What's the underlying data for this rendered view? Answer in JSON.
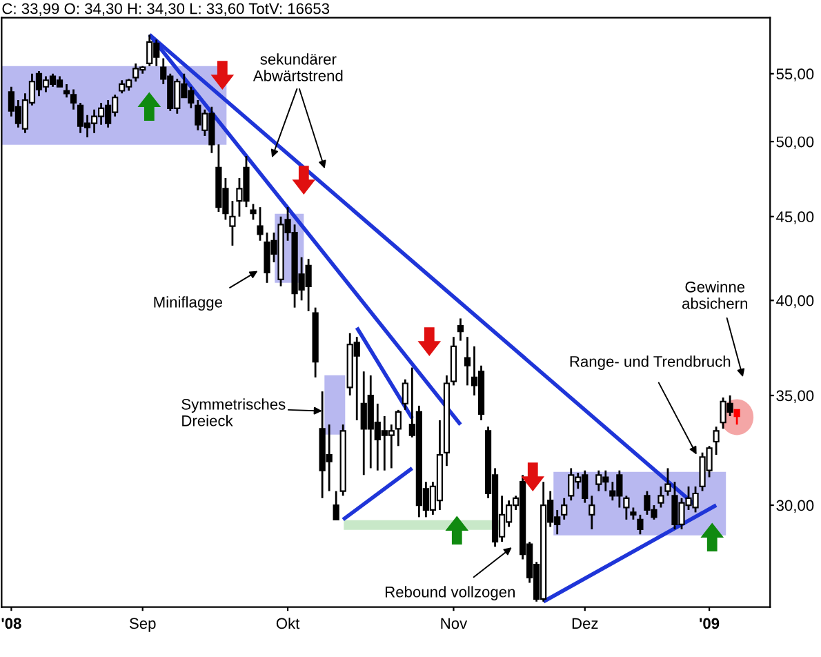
{
  "chart_data": {
    "type": "candlestick",
    "title": "C: 33,99 O: 34,30 H: 34,30 L: 33,60 TotV: 16653",
    "categories": [
      "'08",
      null,
      null,
      null,
      null,
      null,
      null,
      null,
      null,
      null,
      null,
      null,
      null,
      null,
      null,
      null,
      null,
      null,
      null,
      "Sep",
      null,
      null,
      null,
      null,
      null,
      null,
      null,
      null,
      null,
      null,
      null,
      null,
      null,
      null,
      null,
      null,
      null,
      null,
      null,
      null,
      "Okt",
      null,
      null,
      null,
      null,
      null,
      null,
      null,
      null,
      null,
      null,
      null,
      null,
      null,
      null,
      null,
      null,
      null,
      null,
      null,
      null,
      null,
      null,
      null,
      "Nov",
      null,
      null,
      null,
      null,
      null,
      null,
      null,
      null,
      null,
      null,
      null,
      null,
      null,
      null,
      null,
      null,
      null,
      null,
      "Dez",
      null,
      null,
      null,
      null,
      null,
      null,
      null,
      null,
      null,
      null,
      null,
      null,
      null,
      null,
      null,
      null,
      null,
      "'09",
      null,
      null,
      null,
      null
    ],
    "ohlc": [
      [
        53.6,
        54,
        51.8,
        52.2
      ],
      [
        52.5,
        53,
        51,
        51.3
      ],
      [
        50.9,
        53.5,
        50.6,
        53.0
      ],
      [
        52.8,
        55,
        52.6,
        54.4
      ],
      [
        55,
        55.2,
        53.3,
        53.8
      ],
      [
        54,
        54.8,
        53.6,
        54.5
      ],
      [
        54.8,
        55,
        54,
        54.2
      ],
      [
        54.5,
        54.8,
        54,
        54.0
      ],
      [
        53.7,
        54.2,
        53.2,
        53.5
      ],
      [
        53.4,
        53.8,
        52.3,
        52.8
      ],
      [
        52.6,
        52.8,
        50.6,
        51.1
      ],
      [
        51.3,
        51.9,
        50.3,
        51.0
      ],
      [
        51.3,
        52.3,
        50.6,
        51.8
      ],
      [
        51.8,
        52.8,
        51.2,
        52.4
      ],
      [
        52.6,
        53,
        51,
        51.3
      ],
      [
        52.1,
        53.4,
        51.8,
        53.2
      ],
      [
        53.7,
        54.5,
        53.5,
        54.2
      ],
      [
        54.0,
        54.6,
        53.7,
        54.5
      ],
      [
        54.7,
        55.8,
        54.4,
        55.4
      ],
      [
        55.3,
        55.6,
        55.0,
        55.5
      ],
      [
        55.8,
        58.1,
        55.6,
        57.5
      ],
      [
        57.4,
        57.7,
        55.6,
        56.3
      ],
      [
        55.5,
        56.2,
        54.2,
        54.6
      ],
      [
        54.8,
        55,
        52.2,
        52.4
      ],
      [
        52.4,
        54.6,
        52,
        54.4
      ],
      [
        54.2,
        55,
        53.2,
        53.2
      ],
      [
        53.7,
        54,
        52.4,
        52.8
      ],
      [
        52.6,
        53,
        50.8,
        51.2
      ],
      [
        50.8,
        52.3,
        50.4,
        52.0
      ],
      [
        52.0,
        52.5,
        49.2,
        49.8
      ],
      [
        48.2,
        49.8,
        45.3,
        45.6
      ],
      [
        46.8,
        47.5,
        44.8,
        45.2
      ],
      [
        44.4,
        46,
        43.2,
        45.0
      ],
      [
        46,
        47.5,
        45,
        46.8
      ],
      [
        48.2,
        49,
        45.6,
        46
      ],
      [
        45.4,
        45.8,
        44.8,
        45.2
      ],
      [
        44.4,
        45.6,
        43.5,
        43.9
      ],
      [
        43.4,
        44,
        41,
        41.6
      ],
      [
        43.5,
        44,
        42.2,
        42.7
      ],
      [
        41.2,
        45,
        40.8,
        44.5
      ],
      [
        44.8,
        45.6,
        43.5,
        44.0
      ],
      [
        44,
        44.5,
        39.6,
        40.4
      ],
      [
        41.5,
        42.5,
        40,
        40.6
      ],
      [
        42,
        42.4,
        39.4,
        40.8
      ],
      [
        39.3,
        39.6,
        35.9,
        36.7
      ],
      [
        33.4,
        35.2,
        30.3,
        31.5
      ],
      [
        32.2,
        33.6,
        30.6,
        31.9
      ],
      [
        30,
        30.6,
        29.4,
        29.4
      ],
      [
        30.6,
        33.6,
        30.4,
        33.3
      ],
      [
        35.4,
        38.2,
        35,
        37.6
      ],
      [
        37.7,
        38,
        33.8,
        37.0
      ],
      [
        34.6,
        36.2,
        31.3,
        33.4
      ],
      [
        35,
        36,
        31.6,
        33.4
      ],
      [
        33.7,
        34.6,
        31.5,
        32.9
      ],
      [
        33.3,
        34,
        31.5,
        33.1
      ],
      [
        33.1,
        33.6,
        31.6,
        33.3
      ],
      [
        33.4,
        34.3,
        32.6,
        34.2
      ],
      [
        34.6,
        35.8,
        34.3,
        35.6
      ],
      [
        33.6,
        36.4,
        33,
        33.1
      ],
      [
        34.2,
        34.5,
        29.5,
        30.0
      ],
      [
        30.7,
        31,
        29.5,
        29.8
      ],
      [
        29.8,
        31,
        29.6,
        30.8
      ],
      [
        30.2,
        33.8,
        29.8,
        32.2
      ],
      [
        32.3,
        36,
        31.7,
        35.6
      ],
      [
        35.7,
        38,
        35.5,
        37.5
      ],
      [
        38.6,
        39,
        37.8,
        38.3
      ],
      [
        36.9,
        38,
        35.5,
        36.5
      ],
      [
        35.9,
        37.5,
        35,
        35.5
      ],
      [
        36.2,
        36.5,
        33.8,
        34.1
      ],
      [
        33.3,
        33.5,
        30.3,
        30.5
      ],
      [
        31.3,
        31.6,
        28.3,
        28.5
      ],
      [
        28.7,
        30.4,
        28.5,
        29.6
      ],
      [
        29.3,
        30.2,
        29.1,
        30.0
      ],
      [
        30.0,
        30.4,
        29.8,
        30.3
      ],
      [
        31,
        31.3,
        27.8,
        28.0
      ],
      [
        28.4,
        28.5,
        26.9,
        27.1
      ],
      [
        27.6,
        27.7,
        26.2,
        26.3
      ],
      [
        26.3,
        31,
        26.2,
        30.0
      ],
      [
        30.2,
        30.6,
        29.1,
        29.3
      ],
      [
        29.5,
        29.8,
        28.8,
        29.2
      ],
      [
        29.6,
        30.3,
        29.4,
        30.0
      ],
      [
        30.4,
        31.6,
        30.2,
        31.3
      ],
      [
        31.0,
        31.4,
        30.7,
        31.2
      ],
      [
        31.3,
        31.5,
        30.1,
        30.3
      ],
      [
        29.6,
        30.4,
        29.0,
        30.0
      ],
      [
        30.9,
        31.5,
        30.6,
        31.3
      ],
      [
        31.2,
        31.5,
        30.6,
        31.0
      ],
      [
        30.6,
        31.0,
        30.2,
        30.4
      ],
      [
        31.3,
        31.5,
        29.9,
        30.4
      ],
      [
        29.9,
        30.4,
        29.4,
        30.3
      ],
      [
        29.7,
        29.9,
        29.4,
        29.6
      ],
      [
        29.4,
        29.6,
        28.8,
        29.0
      ],
      [
        30.4,
        30.6,
        29.6,
        29.8
      ],
      [
        29.8,
        30.0,
        29.4,
        29.5
      ],
      [
        30.1,
        30.8,
        29.9,
        30.4
      ],
      [
        30.6,
        31.6,
        30.4,
        30.9
      ],
      [
        30.4,
        31.0,
        29.0,
        29.2
      ],
      [
        29.2,
        30.3,
        29.0,
        30.1
      ],
      [
        30.0,
        30.8,
        29.8,
        30.3
      ],
      [
        29.9,
        30.8,
        29.7,
        30.5
      ],
      [
        30.8,
        32.3,
        30.6,
        32.1
      ],
      [
        31.5,
        32.6,
        31.2,
        32.5
      ],
      [
        32.8,
        33.5,
        32.2,
        33.3
      ],
      [
        33.7,
        34.9,
        33.4,
        34.7
      ],
      [
        34.6,
        35.0,
        34.0,
        34.2
      ],
      [
        34.3,
        34.3,
        33.6,
        33.99
      ]
    ],
    "colors": [
      "#000000",
      "#000000",
      "#ffffff",
      "#ffffff",
      "#000000",
      "#ffffff",
      "#000000",
      "#000000",
      "#000000",
      "#000000",
      "#000000",
      "#000000",
      "#ffffff",
      "#ffffff",
      "#000000",
      "#ffffff",
      "#ffffff",
      "#ffffff",
      "#ffffff",
      "#ffffff",
      "#ffffff",
      "#000000",
      "#000000",
      "#000000",
      "#ffffff",
      "#000000",
      "#000000",
      "#000000",
      "#ffffff",
      "#000000",
      "#000000",
      "#000000",
      "#ffffff",
      "#ffffff",
      "#000000",
      "#000000",
      "#000000",
      "#000000",
      "#000000",
      "#ffffff",
      "#000000",
      "#000000",
      "#000000",
      "#000000",
      "#000000",
      "#000000",
      "#000000",
      "#000000",
      "#ffffff",
      "#ffffff",
      "#000000",
      "#000000",
      "#000000",
      "#000000",
      "#000000",
      "#ffffff",
      "#ffffff",
      "#ffffff",
      "#000000",
      "#000000",
      "#000000",
      "#ffffff",
      "#ffffff",
      "#ffffff",
      "#ffffff",
      "#000000",
      "#000000",
      "#000000",
      "#000000",
      "#000000",
      "#000000",
      "#ffffff",
      "#ffffff",
      "#ffffff",
      "#000000",
      "#000000",
      "#000000",
      "#ffffff",
      "#000000",
      "#000000",
      "#ffffff",
      "#ffffff",
      "#ffffff",
      "#000000",
      "#ffffff",
      "#ffffff",
      "#000000",
      "#000000",
      "#000000",
      "#ffffff",
      "#000000",
      "#000000",
      "#000000",
      "#000000",
      "#ffffff",
      "#ffffff",
      "#000000",
      "#ffffff",
      "#ffffff",
      "#ffffff",
      "#ffffff",
      "#ffffff",
      "#ffffff",
      "#ffffff",
      "#000000",
      "#ff0000"
    ],
    "series": [
      {
        "type": "line",
        "color": "#1f35d8",
        "values": [
          null,
          null,
          null,
          null,
          null,
          null,
          null,
          null,
          null,
          null,
          null,
          null,
          null,
          null,
          null,
          null,
          null,
          null,
          null,
          null,
          58.1,
          null,
          null,
          null,
          null,
          null,
          null,
          null,
          null,
          null,
          null,
          null,
          null,
          null,
          null,
          null,
          null,
          null,
          null,
          null,
          null,
          null,
          null,
          null,
          null,
          null,
          null,
          null,
          null,
          null,
          null,
          null,
          null,
          null,
          null,
          null,
          null,
          null,
          null,
          null,
          null,
          null,
          null,
          null,
          null,
          null,
          null,
          null,
          null,
          null,
          null,
          null,
          null,
          null,
          null,
          null,
          null,
          null,
          null,
          null,
          null,
          null,
          null,
          null,
          null,
          null,
          null,
          null,
          null,
          null,
          null,
          null,
          null,
          null,
          null,
          null,
          null,
          null,
          null,
          30.0,
          null,
          null,
          null,
          null,
          null,
          null
        ]
      },
      {
        "type": "line",
        "color": "#1f35d8",
        "values": [
          null,
          null,
          null,
          null,
          null,
          null,
          null,
          null,
          null,
          null,
          null,
          null,
          null,
          null,
          null,
          null,
          null,
          null,
          null,
          null,
          58.1,
          null,
          null,
          null,
          null,
          null,
          null,
          null,
          null,
          null,
          null,
          null,
          null,
          null,
          null,
          null,
          null,
          null,
          null,
          null,
          null,
          null,
          null,
          null,
          null,
          null,
          null,
          null,
          null,
          null,
          null,
          null,
          null,
          null,
          null,
          null,
          null,
          null,
          null,
          null,
          null,
          null,
          null,
          null,
          null,
          33.6,
          null,
          null,
          null,
          null,
          null,
          null,
          null,
          null,
          null,
          null,
          null,
          null,
          null,
          null,
          null,
          null,
          null,
          null,
          null,
          null,
          null,
          null,
          null,
          null,
          null,
          null,
          null,
          null,
          null,
          null,
          null,
          null,
          null,
          null,
          null,
          null,
          null,
          null,
          null,
          null
        ]
      },
      {
        "type": "line",
        "color": "#1f35d8",
        "values": [
          null,
          null,
          null,
          null,
          null,
          null,
          null,
          null,
          null,
          null,
          null,
          null,
          null,
          null,
          null,
          null,
          null,
          null,
          null,
          null,
          null,
          null,
          null,
          null,
          null,
          null,
          null,
          null,
          null,
          null,
          null,
          null,
          null,
          null,
          null,
          null,
          null,
          null,
          null,
          null,
          null,
          null,
          null,
          null,
          null,
          null,
          null,
          null,
          null,
          null,
          38.5,
          null,
          null,
          null,
          null,
          null,
          null,
          null,
          33.9,
          null,
          null,
          null,
          null,
          null,
          null,
          null,
          null,
          null,
          null,
          null,
          null,
          null,
          null,
          null,
          null,
          null,
          null,
          null,
          null,
          null,
          null,
          null,
          null,
          null,
          null,
          null,
          null,
          null,
          null,
          null,
          null,
          null,
          null,
          null,
          null,
          null,
          null,
          null,
          null,
          null,
          null,
          null,
          null,
          null,
          null,
          null
        ]
      },
      {
        "type": "line",
        "color": "#1f35d8",
        "values": [
          null,
          null,
          null,
          null,
          null,
          null,
          null,
          null,
          null,
          null,
          null,
          null,
          null,
          null,
          null,
          null,
          null,
          null,
          null,
          null,
          null,
          null,
          null,
          null,
          null,
          null,
          null,
          null,
          null,
          null,
          null,
          null,
          null,
          null,
          null,
          null,
          null,
          null,
          null,
          null,
          null,
          null,
          null,
          null,
          null,
          null,
          null,
          null,
          29.4,
          null,
          null,
          null,
          null,
          null,
          null,
          null,
          null,
          null,
          31.6,
          null,
          null,
          null,
          null,
          null,
          null,
          null,
          null,
          null,
          null,
          null,
          null,
          null,
          null,
          null,
          null,
          null,
          null,
          null,
          null,
          null,
          null,
          null,
          null,
          null,
          null,
          null,
          null,
          null,
          null,
          null,
          null,
          null,
          null,
          null,
          null,
          null,
          null,
          null,
          null,
          null,
          null,
          null,
          null,
          null,
          null,
          null
        ]
      },
      {
        "type": "line",
        "color": "#1f35d8",
        "values": [
          null,
          null,
          null,
          null,
          null,
          null,
          null,
          null,
          null,
          null,
          null,
          null,
          null,
          null,
          null,
          null,
          null,
          null,
          null,
          null,
          null,
          null,
          null,
          null,
          null,
          null,
          null,
          null,
          null,
          null,
          null,
          null,
          null,
          null,
          null,
          null,
          null,
          null,
          null,
          null,
          null,
          null,
          null,
          null,
          null,
          null,
          null,
          null,
          null,
          null,
          null,
          null,
          null,
          null,
          null,
          null,
          null,
          null,
          null,
          null,
          null,
          null,
          null,
          null,
          null,
          null,
          null,
          null,
          null,
          null,
          null,
          null,
          null,
          null,
          null,
          null,
          null,
          26.2,
          null,
          null,
          null,
          null,
          null,
          null,
          null,
          null,
          null,
          null,
          null,
          null,
          null,
          null,
          null,
          null,
          null,
          null,
          null,
          null,
          null,
          null,
          null,
          null,
          30.0,
          null,
          null,
          null
        ]
      }
    ],
    "log": "y",
    "ylim": [
      26.0,
      59.5
    ],
    "yticks": [
      {
        "value": 30,
        "label": "30,00"
      },
      {
        "value": 35,
        "label": "35,00"
      },
      {
        "value": 40,
        "label": "40,00"
      },
      {
        "value": 45,
        "label": "45,00"
      },
      {
        "value": 50,
        "label": "50,00"
      },
      {
        "value": 55,
        "label": "55,00"
      }
    ],
    "annotations": [
      "sekundärer\nAbwärtstrend",
      "Miniflagge",
      "Symmetrisches\nDreieck",
      "Rebound vollzogen",
      "Range- und Trendbruch",
      "Gewinne\nabsichern"
    ]
  }
}
